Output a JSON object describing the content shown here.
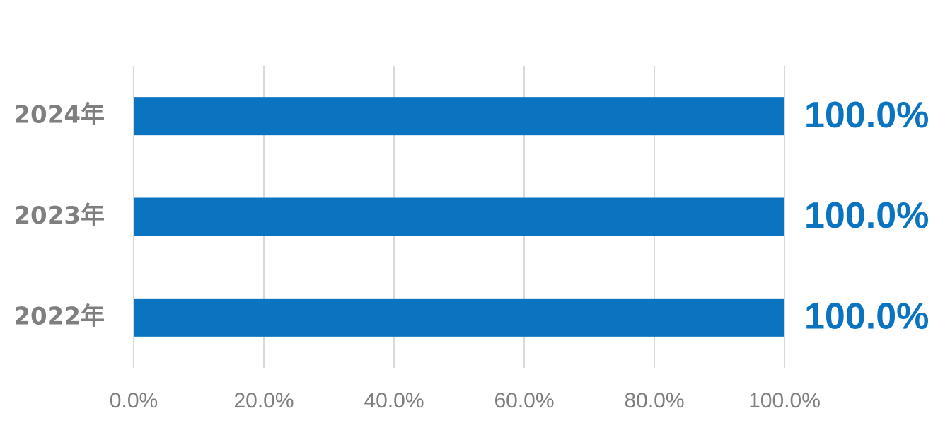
{
  "chart_data": {
    "type": "bar",
    "orientation": "horizontal",
    "categories": [
      "2024年",
      "2023年",
      "2022年"
    ],
    "values": [
      100,
      100,
      100
    ],
    "value_labels": [
      "100.0%",
      "100.0%",
      "100.0%"
    ],
    "color": "#0a74c0",
    "xlim": [
      0,
      100
    ],
    "xticks": [
      {
        "value": 0,
        "label": "0.0%"
      },
      {
        "value": 20,
        "label": "20.0%"
      },
      {
        "value": 40,
        "label": "40.0%"
      },
      {
        "value": 60,
        "label": "60.0%"
      },
      {
        "value": 80,
        "label": "80.0%"
      },
      {
        "value": 100,
        "label": "100.0%"
      }
    ],
    "grid": true
  }
}
